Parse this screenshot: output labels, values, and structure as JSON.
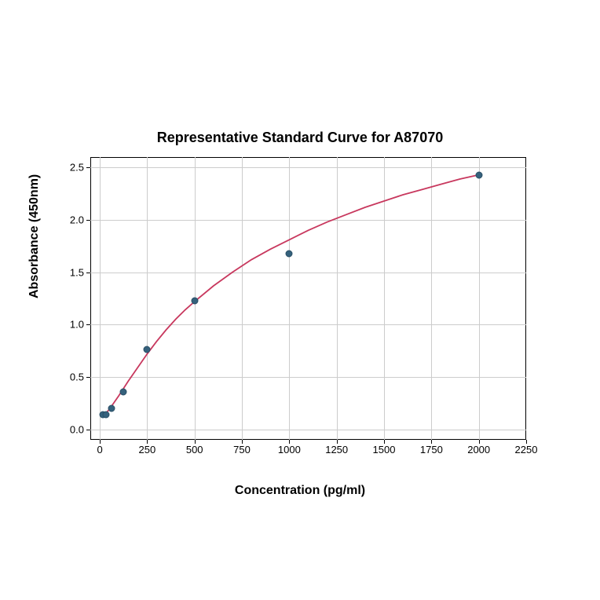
{
  "chart": {
    "type": "line-scatter",
    "title": "Representative Standard Curve for A87070",
    "title_fontsize": 18,
    "title_fontweight": "bold",
    "xlabel": "Concentration (pg/ml)",
    "ylabel": "Absorbance (450nm)",
    "label_fontsize": 16,
    "label_fontweight": "bold",
    "xlim": [
      -50,
      2250
    ],
    "ylim": [
      -0.1,
      2.6
    ],
    "x_ticks": [
      0,
      250,
      500,
      750,
      1000,
      1250,
      1500,
      1750,
      2000,
      2250
    ],
    "y_ticks": [
      0.0,
      0.5,
      1.0,
      1.5,
      2.0,
      2.5
    ],
    "tick_fontsize": 13,
    "grid_color": "#cccccc",
    "background_color": "#ffffff",
    "border_color": "#000000",
    "curve_color": "#c8385e",
    "curve_width": 1.8,
    "marker_color": "#35617c",
    "marker_edge": "#2a4f66",
    "marker_size": 9,
    "data_points": [
      {
        "x": 18,
        "y": 0.14
      },
      {
        "x": 31,
        "y": 0.14
      },
      {
        "x": 62,
        "y": 0.2
      },
      {
        "x": 125,
        "y": 0.36
      },
      {
        "x": 250,
        "y": 0.76
      },
      {
        "x": 500,
        "y": 1.23
      },
      {
        "x": 1000,
        "y": 1.68
      },
      {
        "x": 2000,
        "y": 2.43
      }
    ],
    "curve_points": [
      {
        "x": 16,
        "y": 0.12
      },
      {
        "x": 50,
        "y": 0.19
      },
      {
        "x": 100,
        "y": 0.32
      },
      {
        "x": 150,
        "y": 0.46
      },
      {
        "x": 200,
        "y": 0.59
      },
      {
        "x": 250,
        "y": 0.72
      },
      {
        "x": 300,
        "y": 0.84
      },
      {
        "x": 350,
        "y": 0.95
      },
      {
        "x": 400,
        "y": 1.05
      },
      {
        "x": 450,
        "y": 1.14
      },
      {
        "x": 500,
        "y": 1.22
      },
      {
        "x": 600,
        "y": 1.37
      },
      {
        "x": 700,
        "y": 1.5
      },
      {
        "x": 800,
        "y": 1.62
      },
      {
        "x": 900,
        "y": 1.72
      },
      {
        "x": 1000,
        "y": 1.81
      },
      {
        "x": 1100,
        "y": 1.9
      },
      {
        "x": 1200,
        "y": 1.98
      },
      {
        "x": 1300,
        "y": 2.05
      },
      {
        "x": 1400,
        "y": 2.12
      },
      {
        "x": 1500,
        "y": 2.18
      },
      {
        "x": 1600,
        "y": 2.24
      },
      {
        "x": 1700,
        "y": 2.29
      },
      {
        "x": 1800,
        "y": 2.34
      },
      {
        "x": 1900,
        "y": 2.39
      },
      {
        "x": 2000,
        "y": 2.43
      }
    ]
  }
}
